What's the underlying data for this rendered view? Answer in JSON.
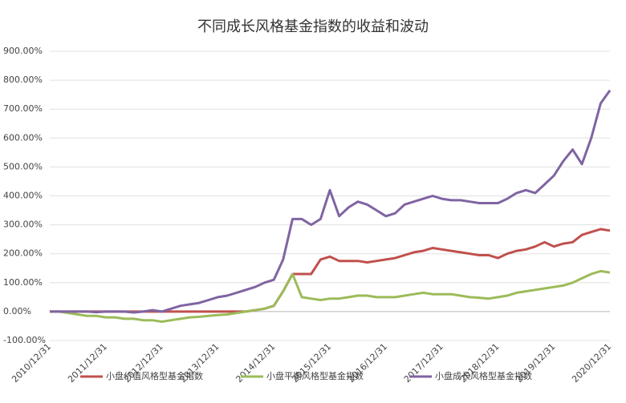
{
  "chart_data": {
    "type": "line",
    "title": "不同成长风格基金指数的收益和波动",
    "categories": [
      "2010/12/31",
      null,
      null,
      null,
      null,
      null,
      "2011/12/31",
      null,
      null,
      null,
      null,
      null,
      "2012/12/31",
      null,
      null,
      null,
      null,
      null,
      "2013/12/31",
      null,
      null,
      null,
      null,
      null,
      "2014/12/31",
      null,
      null,
      null,
      null,
      null,
      "2015/12/31",
      null,
      null,
      null,
      null,
      null,
      "2016/12/31",
      null,
      null,
      null,
      null,
      null,
      "2017/12/31",
      null,
      null,
      null,
      null,
      null,
      "2018/12/31",
      null,
      null,
      null,
      null,
      null,
      "2019/12/31",
      null,
      null,
      null,
      null,
      null,
      "2020/12/31"
    ],
    "series": [
      {
        "name": "小盘价值风格型基金指数",
        "color": "#c0504d",
        "values": [
          0,
          0,
          0,
          0,
          0,
          0,
          0,
          0,
          0,
          0,
          0,
          0,
          0,
          0,
          0,
          0,
          0,
          0,
          0,
          0,
          0,
          0,
          5,
          10,
          20,
          70,
          130,
          130,
          130,
          180,
          190,
          175,
          175,
          175,
          170,
          175,
          180,
          185,
          195,
          205,
          210,
          220,
          215,
          210,
          205,
          200,
          195,
          195,
          185,
          200,
          210,
          215,
          225,
          240,
          225,
          235,
          240,
          265,
          275,
          285,
          280
        ]
      },
      {
        "name": "小盘平衡风格型基金指数",
        "color": "#9bbb59",
        "values": [
          0,
          0,
          -5,
          -10,
          -15,
          -15,
          -20,
          -20,
          -25,
          -25,
          -30,
          -30,
          -35,
          -30,
          -25,
          -20,
          -18,
          -15,
          -12,
          -10,
          -5,
          0,
          5,
          10,
          20,
          70,
          130,
          50,
          45,
          40,
          45,
          45,
          50,
          55,
          55,
          50,
          50,
          50,
          55,
          60,
          65,
          60,
          60,
          60,
          55,
          50,
          48,
          45,
          50,
          55,
          65,
          70,
          75,
          80,
          85,
          90,
          100,
          115,
          130,
          140,
          135
        ]
      },
      {
        "name": "小盘成长风格型基金指数",
        "color": "#8064a2",
        "values": [
          0,
          0,
          0,
          0,
          0,
          -2,
          0,
          0,
          0,
          -3,
          0,
          5,
          0,
          10,
          20,
          25,
          30,
          40,
          50,
          55,
          65,
          75,
          85,
          100,
          110,
          180,
          320,
          320,
          300,
          320,
          420,
          330,
          360,
          380,
          370,
          350,
          330,
          340,
          370,
          380,
          390,
          400,
          390,
          385,
          385,
          380,
          375,
          375,
          375,
          390,
          410,
          420,
          410,
          440,
          470,
          520,
          560,
          510,
          600,
          720,
          765
        ]
      }
    ],
    "ylim": [
      -100,
      900
    ],
    "yticks": [
      {
        "value": -100,
        "label": "-100.00%"
      },
      {
        "value": 0,
        "label": "0.00%"
      },
      {
        "value": 100,
        "label": "100.00%"
      },
      {
        "value": 200,
        "label": "200.00%"
      },
      {
        "value": 300,
        "label": "300.00%"
      },
      {
        "value": 400,
        "label": "400.00%"
      },
      {
        "value": 500,
        "label": "500.00%"
      },
      {
        "value": 600,
        "label": "600.00%"
      },
      {
        "value": 700,
        "label": "700.00%"
      },
      {
        "value": 800,
        "label": "800.00%"
      },
      {
        "value": 900,
        "label": "900.00%"
      }
    ],
    "grid": true,
    "legend": "bottom"
  }
}
